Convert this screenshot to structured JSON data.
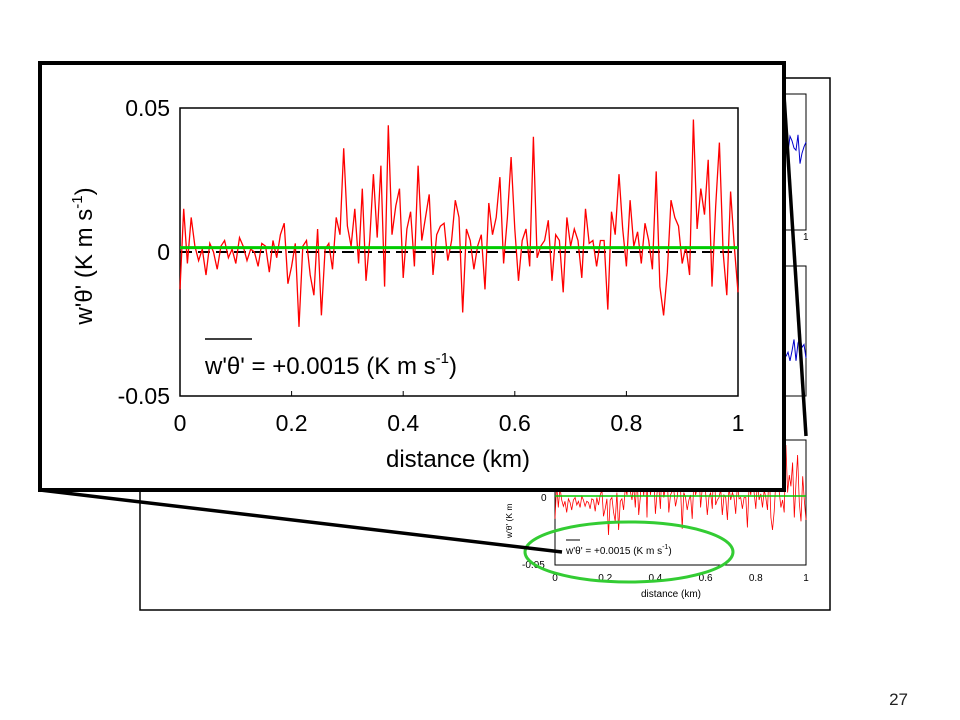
{
  "slide": {
    "page_number": "27"
  },
  "colors": {
    "signal": "#ff0000",
    "mean_line": "#00cc00",
    "zero_line": "#000000",
    "background_trace": "#0000cc",
    "highlight_ellipse": "#33cc33"
  },
  "chart_data": [
    {
      "type": "line",
      "role": "zoomed-inset",
      "ylabel": "w'θ' (K m s",
      "ylabel_exp": "-1",
      "ylabel_close": ")",
      "xlabel": "distance (km)",
      "annotation": "w'θ' = +0.0015 (K m s",
      "annotation_exp": "-1",
      "annotation_close": ")",
      "xlim": [
        0,
        1
      ],
      "ylim": [
        -0.05,
        0.05
      ],
      "xticks": [
        "0",
        "0.2",
        "0.4",
        "0.6",
        "0.8",
        "1"
      ],
      "yticks": [
        "0.05",
        "0",
        "-0.05"
      ],
      "mean_value": 0.0015,
      "series": [
        {
          "color": "red",
          "x_start": 0,
          "x_end": 1,
          "values": [
            -0.013,
            0.015,
            -0.004,
            0.012,
            0.002,
            -0.003,
            0.001,
            -0.008,
            0.003,
            0.0,
            -0.006,
            0.002,
            0.004,
            -0.002,
            0.001,
            -0.004,
            0.005,
            0.002,
            -0.003,
            0.001,
            0.0,
            -0.005,
            0.003,
            0.002,
            -0.007,
            0.004,
            -0.002,
            0.006,
            0.01,
            -0.011,
            -0.005,
            0.003,
            -0.026,
            0.002,
            0.004,
            -0.008,
            -0.015,
            0.008,
            -0.022,
            0.001,
            0.003,
            -0.006,
            0.012,
            0.006,
            0.036,
            0.009,
            0.002,
            0.015,
            -0.004,
            0.022,
            -0.01,
            0.004,
            0.027,
            0.005,
            0.03,
            -0.012,
            0.044,
            0.006,
            0.016,
            0.022,
            -0.009,
            0.008,
            0.014,
            -0.005,
            0.03,
            0.004,
            0.012,
            0.02,
            -0.008,
            0.006,
            0.009,
            0.01,
            -0.003,
            0.004,
            0.018,
            0.012,
            -0.021,
            0.008,
            0.004,
            -0.006,
            0.002,
            0.006,
            -0.013,
            0.017,
            0.006,
            0.012,
            0.026,
            -0.004,
            0.012,
            0.033,
            0.008,
            -0.01,
            0.004,
            0.008,
            -0.005,
            0.04,
            -0.002,
            0.002,
            0.004,
            0.011,
            -0.01,
            0.006,
            0.004,
            -0.014,
            0.012,
            0.002,
            0.008,
            0.004,
            -0.009,
            0.015,
            0.003,
            0.004,
            -0.005,
            0.004,
            0.004,
            -0.02,
            0.014,
            0.006,
            0.027,
            0.008,
            -0.005,
            0.018,
            0.002,
            0.007,
            -0.004,
            0.01,
            0.004,
            -0.006,
            0.028,
            -0.012,
            -0.022,
            -0.007,
            0.018,
            0.012,
            0.009,
            -0.004,
            0.002,
            -0.008,
            0.046,
            0.008,
            0.022,
            0.013,
            0.032,
            -0.012,
            0.016,
            0.038,
            0.0,
            -0.015,
            0.021,
            0.002,
            -0.014
          ]
        }
      ]
    },
    {
      "type": "line",
      "role": "background-figure",
      "ylabel": "w'θ' (K m",
      "xlabel": "distance (km)",
      "annotation": "w'θ' = +0.0015 (K m s",
      "annotation_exp": "-1",
      "annotation_close": ")",
      "xticks": [
        "0",
        "0.2",
        "0.4",
        "0.6",
        "0.8",
        "1"
      ],
      "yticks": [
        "0",
        "-0.05"
      ],
      "top_panel_tick": "1"
    }
  ]
}
